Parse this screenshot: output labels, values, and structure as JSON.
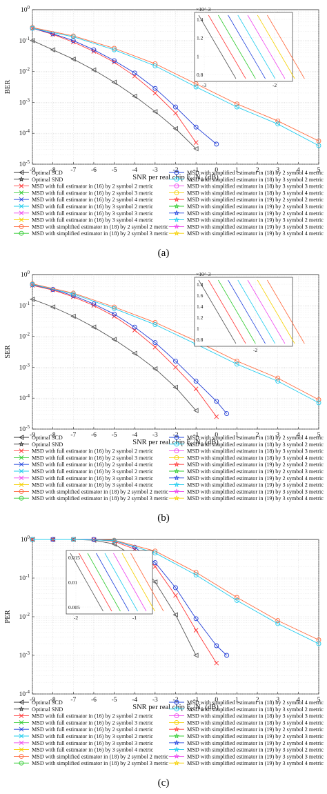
{
  "chart_data": [
    {
      "type": "line",
      "panel_label": "(a)",
      "ylabel": "BER",
      "xlabel_main": "SNR per real chip E",
      "xlabel_sub1": "c",
      "xlabel_mid": "/N",
      "xlabel_sub2": "0",
      "xlabel_end": " (dB)",
      "xlim": [
        -9,
        5
      ],
      "x_ticks": [
        "-9",
        "-8",
        "-7",
        "-6",
        "-5",
        "-4",
        "-3",
        "-2",
        "-1",
        "0",
        "1",
        "2",
        "3",
        "4",
        "5"
      ],
      "y_scale": "log",
      "ylim_exp": [
        -5,
        0
      ],
      "y_ticks": [
        "10^0",
        "10^-1",
        "10^-2",
        "10^-3",
        "10^-4",
        "10^-5"
      ],
      "grid": true,
      "series": [
        {
          "name": "Optimal SCD",
          "color": "#555555",
          "marker": "triangle-left",
          "x": [
            -9,
            -8,
            -7,
            -6,
            -5,
            -4,
            -3,
            -2,
            -1
          ],
          "y_log": [
            -1.0,
            -1.3,
            -1.6,
            -1.95,
            -2.35,
            -2.8,
            -3.3,
            -3.85,
            -4.5
          ]
        },
        {
          "name": "MSD with full estimator in (16) by 2 symbol 2 metric",
          "color": "#ff3b3b",
          "marker": "x",
          "x": [
            -9,
            -8,
            -7,
            -6,
            -5,
            -4,
            -3,
            -2,
            -1
          ],
          "y_log": [
            -0.6,
            -0.8,
            -1.05,
            -1.35,
            -1.7,
            -2.15,
            -2.7,
            -3.35,
            -4.3
          ]
        },
        {
          "name": "MSD with simplified estimator in (18) by 2 symbol 4 metric",
          "color": "#1f3bd6",
          "marker": "circle",
          "x": [
            -9,
            -8,
            -7,
            -6,
            -5,
            -4,
            -3,
            -2,
            -1,
            0
          ],
          "y_log": [
            -0.6,
            -0.78,
            -1.0,
            -1.3,
            -1.65,
            -2.05,
            -2.55,
            -3.15,
            -3.8,
            -4.35
          ]
        },
        {
          "name": "MSD with simplified estimator in (18) by 2 symbol 2 metric",
          "color": "#ff6a3d",
          "marker": "circle",
          "x": [
            -9,
            -7,
            -5,
            -3,
            -1,
            1,
            3,
            5
          ],
          "y_log": [
            -0.58,
            -0.85,
            -1.25,
            -1.75,
            -2.4,
            -3.05,
            -3.6,
            -4.25
          ]
        },
        {
          "name": "MSD with simplified estimator in (18) by 3 symbol 2 metric",
          "color": "#22ccee",
          "marker": "circle",
          "x": [
            -9,
            -7,
            -5,
            -3,
            -1,
            1,
            3,
            5
          ],
          "y_log": [
            -0.6,
            -0.88,
            -1.3,
            -1.82,
            -2.5,
            -3.15,
            -3.7,
            -4.4
          ]
        }
      ],
      "legend_left": [
        "Optimal SCD",
        "Optimal SND",
        "MSD with full estimator in (16) by 2 symbol 2 metric",
        "MSD with full estimator in (16) by 2 symbol 3 metric",
        "MSD with full estimator in (16) by 2 symbol 4 metric",
        "MSD with full estimator in (16) by 3 symbol 2 metric",
        "MSD with full estimator in (16) by 3 symbol 3 metric",
        "MSD with full estimator in (16) by 3 symbol 4 metric",
        "MSD with simplified estimator in (18) by 2 symbol 2 metric",
        "MSD with simplified estimator in (18) by 2 symbol 3 metric"
      ],
      "legend_right": [
        "MSD with simplified estimator in (18) by 2 symbol 4 metric",
        "MSD with simplified estimator in (18) by 3 symbol 2 metric",
        "MSD with simplified estimator in (18) by 3 symbol 3 metric",
        "MSD with simplified estimator in (18) by 3 symbol 4 metric",
        "MSD with simplified estimator in (19) by 2 symbol 2 metric",
        "MSD with simplified estimator in (19) by 2 symbol 3 metric",
        "MSD with simplified estimator in (19) by 2 symbol 4 metric",
        "MSD with simplified estimator in (19) by 3 symbol 2 metric",
        "MSD with simplified estimator in (19) by 3 symbol 3 metric",
        "MSD with simplified estimator in (19) by 3 symbol 4 metric"
      ],
      "inset": {
        "exponent": "×10^-3",
        "y_ticks": [
          "1.4",
          "1.2",
          "1",
          "0.8"
        ],
        "x_ticks": [
          "-3",
          "-2"
        ]
      }
    },
    {
      "type": "line",
      "panel_label": "(b)",
      "ylabel": "SER",
      "xlabel_main": "SNR per real chip E",
      "xlabel_sub1": "c",
      "xlabel_mid": "/N",
      "xlabel_sub2": "0",
      "xlabel_end": " (dB)",
      "xlim": [
        -9,
        5
      ],
      "x_ticks": [
        "-9",
        "-8",
        "-7",
        "-6",
        "-5",
        "-4",
        "-3",
        "-2",
        "-1",
        "0",
        "1",
        "2",
        "3",
        "4",
        "5"
      ],
      "y_scale": "log",
      "ylim_exp": [
        -5,
        0
      ],
      "y_ticks": [
        "10^0",
        "10^-1",
        "10^-2",
        "10^-3",
        "10^-4",
        "10^-5"
      ],
      "grid": true,
      "series": [
        {
          "name": "Optimal SCD",
          "color": "#555555",
          "marker": "triangle-left",
          "x": [
            -9,
            -8,
            -7,
            -6,
            -5,
            -4,
            -3,
            -2,
            -1
          ],
          "y_log": [
            -0.8,
            -1.05,
            -1.35,
            -1.7,
            -2.1,
            -2.55,
            -3.05,
            -3.65,
            -4.4
          ]
        },
        {
          "name": "MSD with full estimator in (16) by 2 symbol 2 metric",
          "color": "#ff3b3b",
          "marker": "x",
          "x": [
            -9,
            -8,
            -7,
            -6,
            -5,
            -4,
            -3,
            -2,
            -1,
            0
          ],
          "y_log": [
            -0.35,
            -0.5,
            -0.72,
            -1.0,
            -1.35,
            -1.8,
            -2.35,
            -3.0,
            -3.7,
            -4.6
          ]
        },
        {
          "name": "MSD with simplified estimator in (18) by 2 symbol 4 metric",
          "color": "#1f3bd6",
          "marker": "circle",
          "x": [
            -9,
            -8,
            -7,
            -6,
            -5,
            -4,
            -3,
            -2,
            -1,
            0,
            0.5
          ],
          "y_log": [
            -0.33,
            -0.48,
            -0.68,
            -0.95,
            -1.28,
            -1.7,
            -2.2,
            -2.8,
            -3.45,
            -4.1,
            -4.5
          ]
        },
        {
          "name": "MSD with simplified estimator in (18) by 2 symbol 2 metric",
          "color": "#ff6a3d",
          "marker": "circle",
          "x": [
            -9,
            -7,
            -5,
            -3,
            -1,
            1,
            3,
            5
          ],
          "y_log": [
            -0.3,
            -0.6,
            -1.05,
            -1.55,
            -2.15,
            -2.8,
            -3.35,
            -4.05
          ]
        },
        {
          "name": "MSD with simplified estimator in (18) by 3 symbol 2 metric",
          "color": "#22ccee",
          "marker": "circle",
          "x": [
            -9,
            -7,
            -5,
            -3,
            -1,
            1,
            3,
            5
          ],
          "y_log": [
            -0.32,
            -0.63,
            -1.1,
            -1.62,
            -2.25,
            -2.9,
            -3.45,
            -4.15
          ]
        }
      ],
      "legend_left": [
        "Optimal SCD",
        "Optimal SND",
        "MSD with full estimator in (16) by 2 symbol 2 metric",
        "MSD with full estimator in (16) by 2 symbol 3 metric",
        "MSD with full estimator in (16) by 2 symbol 4 metric",
        "MSD with full estimator in (16) by 3 symbol 2 metric",
        "MSD with full estimator in (16) by 3 symbol 3 metric",
        "MSD with full estimator in (16) by 3 symbol 4 metric",
        "MSD with simplified estimator in (18) by 2 symbol 2 metric",
        "MSD with simplified estimator in (18) by 2 symbol 3 metric"
      ],
      "legend_right": [
        "MSD with simplified estimator in (18) by 2 symbol 4 metric",
        "MSD with simplified estimator in (18) by 3 symbol 2 metric",
        "MSD with simplified estimator in (18) by 3 symbol 3 metric",
        "MSD with simplified estimator in (18) by 3 symbol 4 metric",
        "MSD with simplified estimator in (19) by 2 symbol 2 metric",
        "MSD with simplified estimator in (19) by 2 symbol 3 metric",
        "MSD with simplified estimator in (19) by 2 symbol 4 metric",
        "MSD with simplified estimator in (19) by 3 symbol 2 metric",
        "MSD with simplified estimator in (19) by 3 symbol 3 metric",
        "MSD with simplified estimator in (19) by 3 symbol 4 metric"
      ],
      "inset": {
        "exponent": "×10^-3",
        "y_ticks": [
          "1.8",
          "1.6",
          "1.4",
          "1.2",
          "1",
          "0.8"
        ],
        "x_ticks": [
          "-2"
        ]
      }
    },
    {
      "type": "line",
      "panel_label": "(c)",
      "ylabel": "PER",
      "xlabel_main": "SNR per real chip E",
      "xlabel_sub1": "c",
      "xlabel_mid": "/N",
      "xlabel_sub2": "0",
      "xlabel_end": " (dB)",
      "xlim": [
        -9,
        5
      ],
      "x_ticks": [
        "-9",
        "-8",
        "-7",
        "-6",
        "-5",
        "-4",
        "-3",
        "-2",
        "-1",
        "0",
        "1",
        "2",
        "3",
        "4",
        "5"
      ],
      "y_scale": "log",
      "ylim_exp": [
        -4,
        0
      ],
      "y_ticks": [
        "10^0",
        "10^-1",
        "10^-2",
        "10^-3",
        "10^-4"
      ],
      "grid": true,
      "series": [
        {
          "name": "Optimal SCD",
          "color": "#555555",
          "marker": "triangle-left",
          "x": [
            -9,
            -8,
            -7,
            -6,
            -5,
            -4,
            -3,
            -2,
            -1
          ],
          "y_log": [
            0,
            0,
            0,
            -0.02,
            -0.12,
            -0.45,
            -1.1,
            -1.95,
            -3.0
          ]
        },
        {
          "name": "MSD with full estimator in (16) by 2 symbol 2 metric",
          "color": "#ff3b3b",
          "marker": "x",
          "x": [
            -9,
            -8,
            -7,
            -6,
            -5,
            -4,
            -3,
            -2,
            -1,
            0
          ],
          "y_log": [
            0,
            0,
            0,
            0,
            -0.05,
            -0.25,
            -0.7,
            -1.45,
            -2.35,
            -3.2
          ]
        },
        {
          "name": "MSD with simplified estimator in (18) by 2 symbol 4 metric",
          "color": "#1f3bd6",
          "marker": "circle",
          "x": [
            -9,
            -8,
            -7,
            -6,
            -5,
            -4,
            -3,
            -2,
            -1,
            0,
            0.5
          ],
          "y_log": [
            0,
            0,
            0,
            0,
            -0.03,
            -0.2,
            -0.6,
            -1.25,
            -2.05,
            -2.75,
            -3.0
          ]
        },
        {
          "name": "MSD with simplified estimator in (18) by 2 symbol 2 metric",
          "color": "#ff6a3d",
          "marker": "circle",
          "x": [
            -9,
            -7,
            -5,
            -3,
            -1,
            1,
            3,
            5
          ],
          "y_log": [
            0,
            0,
            -0.02,
            -0.3,
            -0.85,
            -1.5,
            -2.1,
            -2.6
          ]
        },
        {
          "name": "MSD with simplified estimator in (18) by 3 symbol 2 metric",
          "color": "#22ccee",
          "marker": "circle",
          "x": [
            -9,
            -7,
            -5,
            -3,
            -1,
            1,
            3,
            5
          ],
          "y_log": [
            0,
            0,
            -0.03,
            -0.35,
            -0.92,
            -1.58,
            -2.18,
            -2.7
          ]
        }
      ],
      "legend_left": [
        "Optimal SCD",
        "Optimal SND",
        "MSD with full estimator in (16) by 2 symbol 2 metric",
        "MSD with full estimator in (16) by 2 symbol 3 metric",
        "MSD with full estimator in (16) by 2 symbol 4 metric",
        "MSD with full estimator in (16) by 3 symbol 2 metric",
        "MSD with full estimator in (16) by 3 symbol 3 metric",
        "MSD with full estimator in (16) by 3 symbol 4 metric",
        "MSD with simplified estimator in (18) by 2 symbol 2 metric",
        "MSD with simplified estimator in (18) by 2 symbol 3 metric"
      ],
      "legend_right": [
        "MSD with simplified estimator in (18) by 2 symbol 4 metric",
        "MSD with simplified estimator in (18) by 3 symbol 2 metric",
        "MSD with simplified estimator in (18) by 3 symbol 3 metric",
        "MSD with simplified estimator in (18) by 3 symbol 4 metric",
        "MSD with simplified estimator in (19) by 2 symbol 2 metric",
        "MSD with simplified estimator in (19) by 2 symbol 3 metric",
        "MSD with simplified estimator in (19) by 2 symbol 4 metric",
        "MSD with simplified estimator in (19) by 3 symbol 2 metric",
        "MSD with simplified estimator in (19) by 3 symbol 3 metric",
        "MSD with simplified estimator in (19) by 3 symbol 4 metric"
      ],
      "inset": {
        "exponent": "",
        "y_ticks": [
          "0.015",
          "0.01",
          "0.005"
        ],
        "x_ticks": [
          "-2",
          "-1"
        ]
      }
    }
  ],
  "legend_styles_left": [
    {
      "color": "#333333",
      "marker": "triangle-left"
    },
    {
      "color": "#333333",
      "marker": "star"
    },
    {
      "color": "#ff3b3b",
      "marker": "x"
    },
    {
      "color": "#33cc33",
      "marker": "x"
    },
    {
      "color": "#2244dd",
      "marker": "x"
    },
    {
      "color": "#22ccee",
      "marker": "x"
    },
    {
      "color": "#ee44ee",
      "marker": "x"
    },
    {
      "color": "#f5d000",
      "marker": "x"
    },
    {
      "color": "#ff6a3d",
      "marker": "circle"
    },
    {
      "color": "#33cc33",
      "marker": "circle"
    }
  ],
  "legend_styles_right": [
    {
      "color": "#2244dd",
      "marker": "circle"
    },
    {
      "color": "#22ccee",
      "marker": "circle"
    },
    {
      "color": "#ee44ee",
      "marker": "circle"
    },
    {
      "color": "#f5d000",
      "marker": "circle"
    },
    {
      "color": "#ff3b3b",
      "marker": "star"
    },
    {
      "color": "#33cc33",
      "marker": "star"
    },
    {
      "color": "#2244dd",
      "marker": "star"
    },
    {
      "color": "#22ccee",
      "marker": "star"
    },
    {
      "color": "#ee44ee",
      "marker": "star"
    },
    {
      "color": "#f5d000",
      "marker": "star"
    }
  ]
}
